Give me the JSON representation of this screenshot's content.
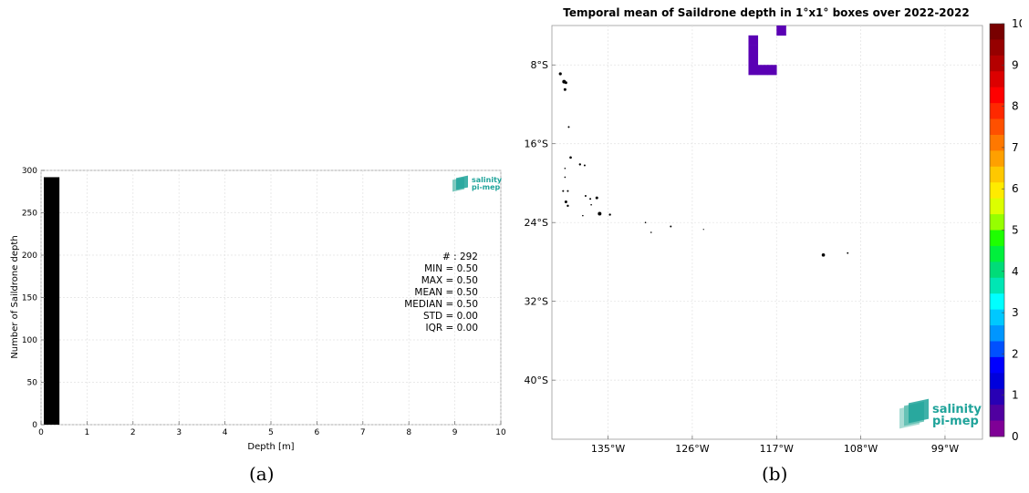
{
  "panels": {
    "a_label": "(a)",
    "b_label": "(b)"
  },
  "chart_data": [
    {
      "type": "bar",
      "panel": "a",
      "title": "",
      "xlabel": "Depth [m]",
      "ylabel": "Number of Saildrone depth",
      "xlim": [
        0,
        10
      ],
      "ylim": [
        0,
        300
      ],
      "xticks": [
        "0",
        "1",
        "2",
        "3",
        "4",
        "5",
        "6",
        "7",
        "8",
        "9",
        "10"
      ],
      "yticks": [
        "0",
        "50",
        "100",
        "150",
        "200",
        "250",
        "300"
      ],
      "bars": [
        {
          "x0": 0.0,
          "x1": 0.4,
          "value": 292
        }
      ],
      "bar_color": "#000000",
      "grid": true,
      "stats": [
        "# : 292",
        "MIN = 0.50",
        "MAX =  0.50",
        "MEAN = 0.50",
        "MEDIAN = 0.50",
        "STD = 0.00",
        "IQR = 0.00"
      ],
      "logo": {
        "line1": "salinity",
        "line2": "pi-mep",
        "color": "#1fa39a"
      }
    },
    {
      "type": "heatmap",
      "panel": "b",
      "title": "Temporal mean of Saildrone depth in 1°x1° boxes over 2022-2022",
      "lon_range": [
        -141,
        -95
      ],
      "lat_range": [
        -46,
        -4
      ],
      "xticks": [
        "135°W",
        "126°W",
        "117°W",
        "108°W",
        "99°W"
      ],
      "xtick_values": [
        -135,
        -126,
        -117,
        -108,
        -99
      ],
      "yticks": [
        "8°S",
        "16°S",
        "24°S",
        "32°S",
        "40°S"
      ],
      "ytick_values": [
        -8,
        -16,
        -24,
        -32,
        -40
      ],
      "grid": true,
      "cells": [
        {
          "lon": -120,
          "lat": -5,
          "value": 0.5
        },
        {
          "lon": -120,
          "lat": -6,
          "value": 0.5
        },
        {
          "lon": -120,
          "lat": -7,
          "value": 0.5
        },
        {
          "lon": -120,
          "lat": -8,
          "value": 0.5
        },
        {
          "lon": -119,
          "lat": -8,
          "value": 0.5
        },
        {
          "lon": -118,
          "lat": -8,
          "value": 0.5
        },
        {
          "lon": -117,
          "lat": -4,
          "value": 0.5
        }
      ],
      "cell_color": "#5a00b4",
      "colorbar": {
        "ticks": [
          "0",
          "1",
          "2",
          "3",
          "4",
          "5",
          "6",
          "7",
          "8",
          "9",
          "10"
        ],
        "colors": [
          "#7f0096",
          "#5000a0",
          "#2800b4",
          "#0000dc",
          "#0000ff",
          "#0050ff",
          "#0096ff",
          "#00c8ff",
          "#00ffff",
          "#00e6b4",
          "#00dc78",
          "#00f03c",
          "#1eff00",
          "#96ff00",
          "#dcff00",
          "#ffeb00",
          "#ffc800",
          "#ffa000",
          "#ff7800",
          "#ff5000",
          "#ff2800",
          "#ff0000",
          "#dc0000",
          "#b40000",
          "#960000",
          "#780000"
        ]
      },
      "logo": {
        "line1": "salinity",
        "line2": "pi-mep",
        "color": "#1fa39a"
      }
    }
  ]
}
